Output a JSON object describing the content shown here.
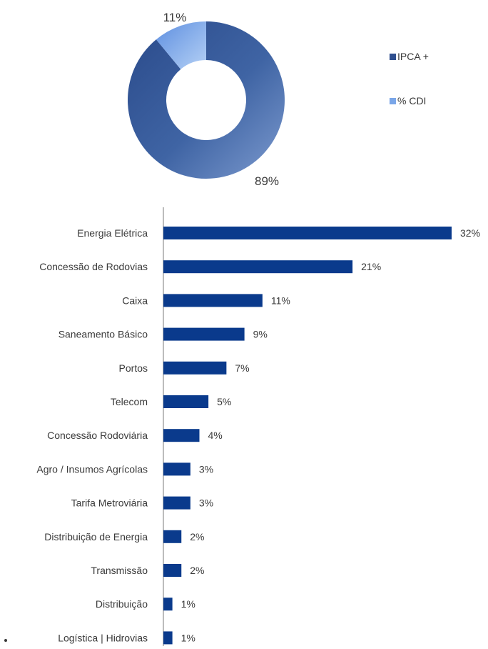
{
  "chart_data": [
    {
      "type": "pie",
      "categories": [
        "IPCA +",
        "% CDI"
      ],
      "values": [
        89,
        11
      ],
      "data_labels": [
        "89%",
        "11%"
      ],
      "colors": [
        "#2f4f8f",
        "#7aa6e8"
      ],
      "legend": [
        "IPCA +",
        "% CDI"
      ],
      "legend_position": "right",
      "donut": true
    },
    {
      "type": "bar",
      "orientation": "horizontal",
      "categories": [
        "Energia Elétrica",
        "Concessão de Rodovias",
        "Caixa",
        "Saneamento Básico",
        "Portos",
        "Telecom",
        "Concessão Rodoviária",
        "Agro / Insumos Agrícolas",
        "Tarifa Metroviária",
        "Distribuição de Energia",
        "Transmissão",
        "Distribuição",
        "Logística | Hidrovias"
      ],
      "values": [
        32,
        21,
        11,
        9,
        7,
        5,
        4,
        3,
        3,
        2,
        2,
        1,
        1
      ],
      "data_labels": [
        "32%",
        "21%",
        "11%",
        "9%",
        "7%",
        "5%",
        "4%",
        "3%",
        "3%",
        "2%",
        "2%",
        "1%",
        "1%"
      ],
      "color": "#0a3a8c",
      "grid": false
    }
  ]
}
